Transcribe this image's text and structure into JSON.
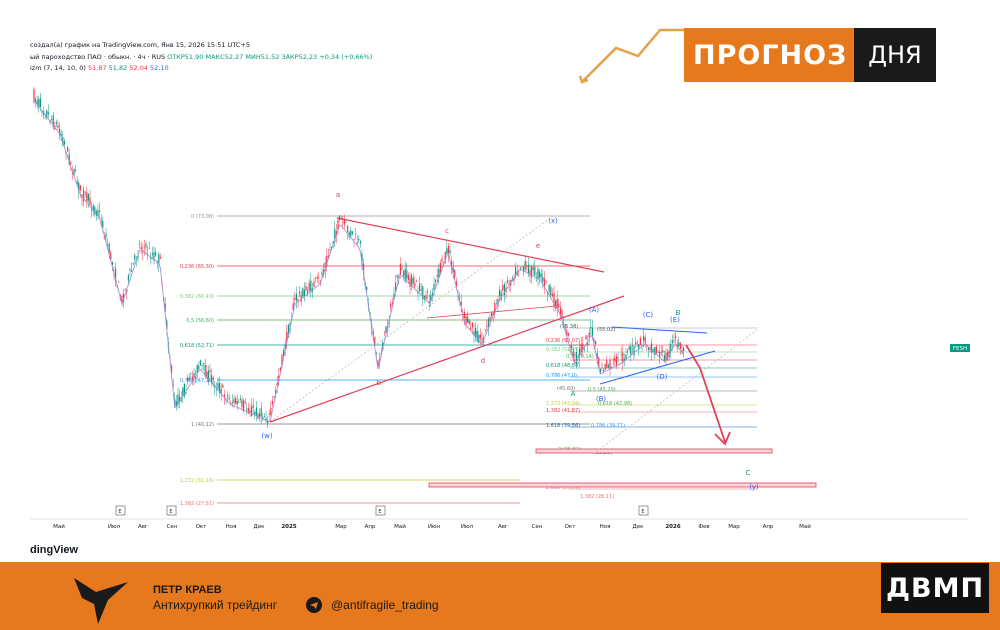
{
  "header": {
    "line1": "создал(а) график на TradingView.com, Янв 15, 2026 15:51 UTC+5",
    "line2_name": "ый пароходство ПАО · обыкн. · 4ч · RUS",
    "line2_open": "ОТКР51,90",
    "line2_high": "МАКС52,27",
    "line2_low": "МИН51,52",
    "line2_close": "ЗАКР52,23",
    "line2_change": "+0,34 (+0,66%)",
    "line3_name": "izm (7, 14, 10, 0)",
    "line3_v1": "51,87",
    "line3_v2": "51,82",
    "line3_v3": "52,04",
    "line3_v4": "52,10"
  },
  "badge": {
    "left": "ПРОГНОЗ",
    "right": "ДНЯ"
  },
  "tv_logo": "dingView",
  "ticker_tag": "FESH",
  "x_axis": [
    "Май",
    "Июл",
    "Авг",
    "Сен",
    "Окт",
    "Ноя",
    "Дек",
    "2025",
    "Мар",
    "Апр",
    "Май",
    "Июн",
    "Июл",
    "Авг",
    "Сен",
    "Окт",
    "Ноя",
    "Дек",
    "2026",
    "Фев",
    "Мар",
    "Апр",
    "Май"
  ],
  "fib_left": [
    "0 (73,08)",
    "0,236 (65,30)",
    "0,382 (60,49)",
    "0,5 (56,60)",
    "0,618 (52,71)",
    "0,786 (47,18)",
    "1 (40,12)",
    "1,272 (31,16)",
    "1,382 (27,51)"
  ],
  "fib_right": [
    "(55,38)",
    "(55,02)",
    "0,236 (53,07)",
    "0,382 (51,45)",
    "0,5 (50,14)",
    "0,618 (48,84)",
    "0,786 (47,0)",
    "(45,60)",
    "0,5 (45,29)",
    "1,272 (42,94)",
    "0,618 (42,98)",
    "1,382 (41,87)",
    "1,618 (39,56)",
    "0,786 (39,71)",
    "2 (35,83)",
    "(35,55)",
    "2,618 (29,79)",
    "1,382 (28,11)"
  ],
  "waves": [
    "a",
    "b",
    "c",
    "d",
    "e",
    "(w)",
    "(x)",
    "(y)",
    "(A)",
    "(B)",
    "(C)",
    "(D)",
    "(E)",
    "A",
    "B",
    "C"
  ],
  "event_marker": "E",
  "footer": {
    "name": "ПЕТР КРАЕВ",
    "subtitle": "Антихрупкий трейдинг",
    "handle": "@antifragile_trading",
    "logo": "ДВМП"
  },
  "colors": {
    "accent": "#e6791d",
    "up": "#089981",
    "down": "#f23645",
    "pattern": "#e0415a",
    "ma": "#a98fe0"
  }
}
